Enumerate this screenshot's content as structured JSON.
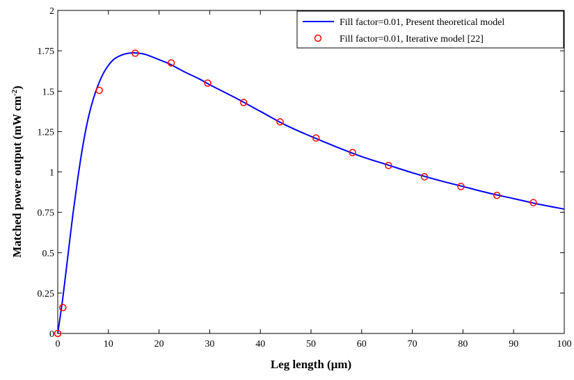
{
  "chart_data": {
    "type": "line",
    "title": "",
    "xlabel": "Leg length (μm)",
    "ylabel_main": "Matched power output (mW cm",
    "ylabel_sup": "-2",
    "ylabel_close": ")",
    "xlim": [
      0,
      100
    ],
    "ylim": [
      0,
      2
    ],
    "xticks": [
      0,
      10,
      20,
      30,
      40,
      50,
      60,
      70,
      80,
      90,
      100
    ],
    "xtick_labels": [
      "0",
      "10",
      "20",
      "30",
      "40",
      "50",
      "60",
      "70",
      "80",
      "90",
      "100"
    ],
    "yticks": [
      0,
      0.25,
      0.5,
      0.75,
      1,
      1.25,
      1.5,
      1.75,
      2
    ],
    "ytick_labels": [
      "0",
      "0.25",
      "0.5",
      "0.75",
      "1",
      "1.25",
      "1.5",
      "1.75",
      "2"
    ],
    "grid": false,
    "legend_position": "top-right",
    "series": [
      {
        "name": "Fill factor=0.01, Present theoretical model",
        "kind": "line",
        "color": "#0000ff",
        "x": [
          0,
          1,
          2,
          3,
          4,
          5,
          6,
          7,
          8,
          9,
          10,
          11,
          12,
          13,
          14,
          15,
          16,
          17,
          18,
          20,
          22,
          25,
          28,
          30,
          35,
          40,
          45,
          50,
          55,
          60,
          65,
          70,
          75,
          80,
          85,
          90,
          95,
          100
        ],
        "y": [
          0.0,
          0.22,
          0.48,
          0.74,
          0.97,
          1.17,
          1.33,
          1.45,
          1.54,
          1.61,
          1.66,
          1.695,
          1.715,
          1.728,
          1.735,
          1.737,
          1.735,
          1.73,
          1.72,
          1.695,
          1.67,
          1.62,
          1.575,
          1.54,
          1.46,
          1.375,
          1.29,
          1.22,
          1.155,
          1.095,
          1.045,
          0.995,
          0.95,
          0.91,
          0.87,
          0.835,
          0.8,
          0.77
        ]
      },
      {
        "name": "Fill factor=0.01, Iterative model [22]",
        "kind": "markers",
        "color": "#ff0000",
        "x": [
          0,
          1,
          8.2,
          15.3,
          22.4,
          29.6,
          36.7,
          43.9,
          51.0,
          58.2,
          65.3,
          72.4,
          79.6,
          86.7,
          93.9
        ],
        "y": [
          0.0,
          0.16,
          1.505,
          1.735,
          1.675,
          1.55,
          1.43,
          1.31,
          1.21,
          1.12,
          1.04,
          0.97,
          0.91,
          0.855,
          0.81
        ]
      }
    ]
  }
}
